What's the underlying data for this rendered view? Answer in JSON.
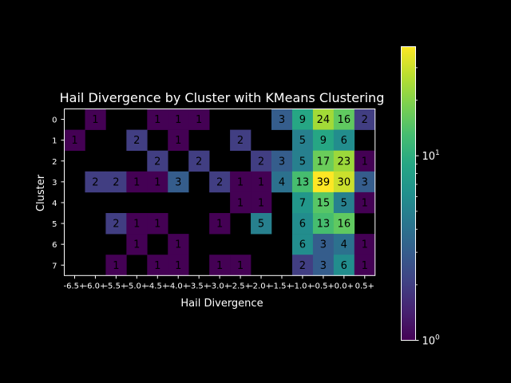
{
  "chart_data": {
    "type": "heatmap",
    "title": "Hail Divergence by Cluster with KMeans Clustering",
    "xlabel": "Hail Divergence",
    "ylabel": "Cluster",
    "x_categories": [
      "-6.5+",
      "-6.0+",
      "-5.5+",
      "-5.0+",
      "-4.5+",
      "-4.0+",
      "-3.5+",
      "-3.0+",
      "-2.5+",
      "-2.0+",
      "-1.5+",
      "-1.0+",
      "-0.5+",
      "0.0+",
      "0.5+"
    ],
    "y_categories": [
      "0",
      "1",
      "2",
      "3",
      "4",
      "5",
      "6",
      "7"
    ],
    "values": [
      [
        null,
        1,
        null,
        null,
        1,
        1,
        1,
        null,
        null,
        null,
        3,
        9,
        24,
        16,
        2
      ],
      [
        1,
        null,
        null,
        2,
        null,
        1,
        null,
        null,
        2,
        null,
        null,
        5,
        9,
        6,
        null
      ],
      [
        null,
        null,
        null,
        null,
        2,
        null,
        2,
        null,
        null,
        2,
        3,
        5,
        17,
        23,
        1
      ],
      [
        null,
        2,
        2,
        1,
        1,
        3,
        null,
        2,
        1,
        1,
        4,
        13,
        39,
        30,
        3
      ],
      [
        null,
        null,
        null,
        null,
        null,
        null,
        null,
        null,
        1,
        1,
        null,
        7,
        15,
        5,
        1
      ],
      [
        null,
        null,
        2,
        1,
        1,
        null,
        null,
        1,
        null,
        5,
        null,
        6,
        13,
        16,
        null
      ],
      [
        null,
        null,
        null,
        1,
        null,
        1,
        null,
        null,
        null,
        null,
        null,
        6,
        3,
        4,
        1
      ],
      [
        null,
        null,
        1,
        null,
        1,
        1,
        null,
        1,
        1,
        null,
        null,
        2,
        3,
        6,
        1
      ]
    ],
    "colorscale": "viridis",
    "color_scale_type": "log",
    "color_range": [
      1,
      39
    ],
    "colorbar_ticks": [
      "10^0",
      "10^1"
    ],
    "background": "#000000",
    "text_color": "#ffffff",
    "cell_label_color": "#000000"
  }
}
